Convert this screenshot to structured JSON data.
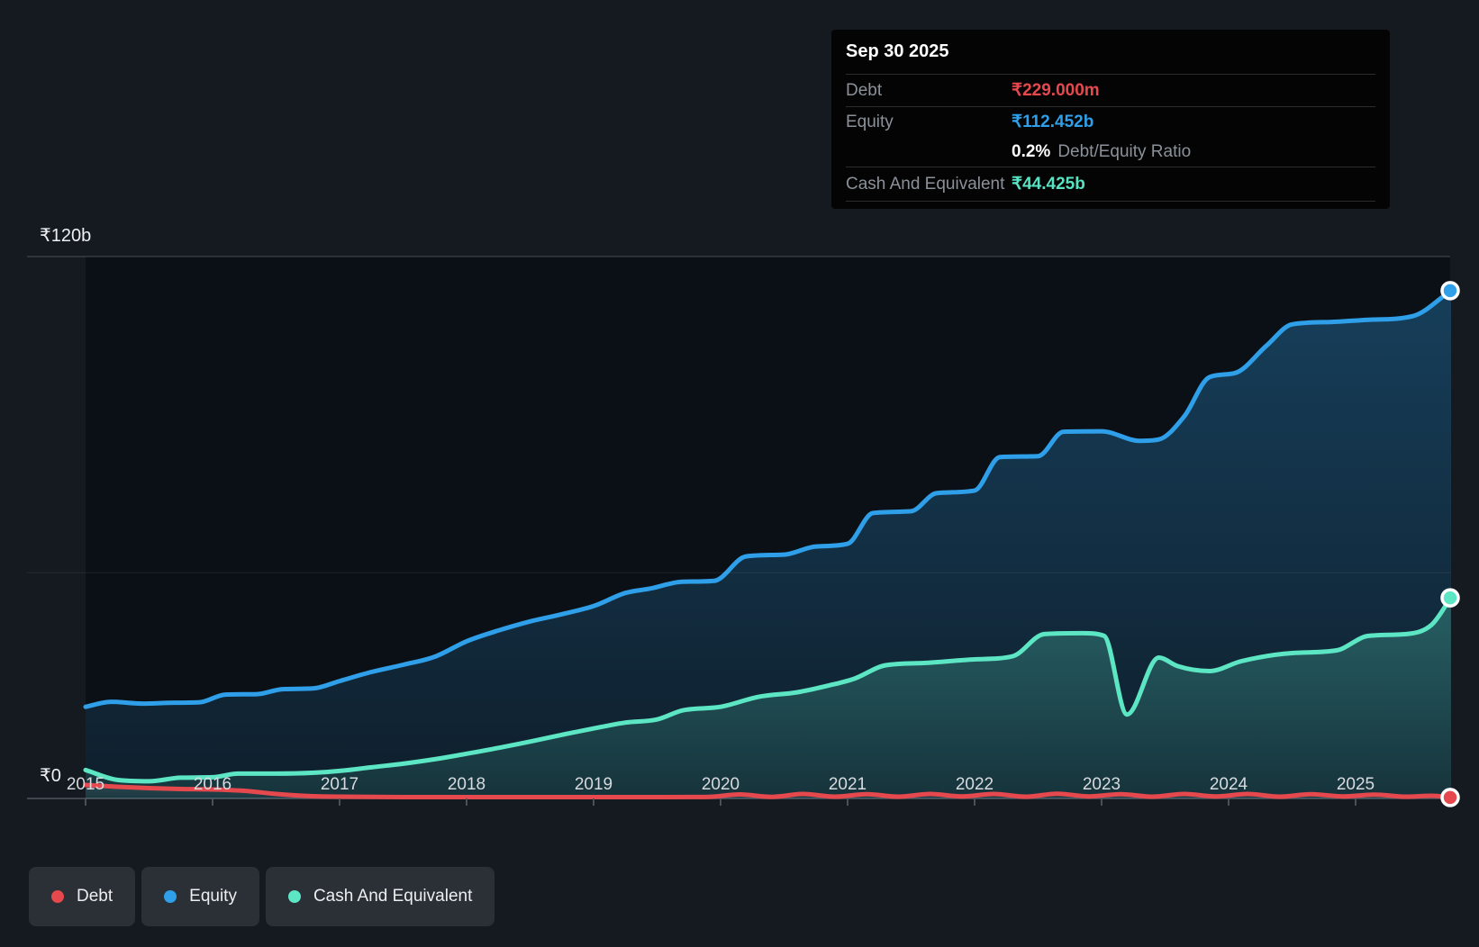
{
  "tooltip": {
    "date": "Sep 30 2025",
    "debt_label": "Debt",
    "debt_value": "₹229.000m",
    "equity_label": "Equity",
    "equity_value": "₹112.452b",
    "ratio_value": "0.2%",
    "ratio_label": "Debt/Equity Ratio",
    "cash_label": "Cash And Equivalent",
    "cash_value": "₹44.425b"
  },
  "legend": {
    "items": [
      {
        "label": "Debt",
        "color": "#e5484d"
      },
      {
        "label": "Equity",
        "color": "#2e9fe8"
      },
      {
        "label": "Cash And Equivalent",
        "color": "#5ce6c4"
      }
    ]
  },
  "chart_data": {
    "type": "area",
    "unit": "₹ billions (INR)",
    "ylim": [
      0,
      120
    ],
    "y_gridlines": [
      0,
      50,
      120
    ],
    "y_tick_labels": [
      "₹0",
      "₹120b"
    ],
    "x_tick_labels": [
      "2015",
      "2016",
      "2017",
      "2018",
      "2019",
      "2020",
      "2021",
      "2022",
      "2023",
      "2024",
      "2025"
    ],
    "x_end": 2025.75,
    "end_markers": true,
    "grid": "horizontal-only",
    "legend_position": "bottom-left",
    "series": [
      {
        "name": "Debt",
        "color": "#e5484d",
        "fill": "gray-gradient",
        "end_value_label": "₹229.000m",
        "points": [
          [
            2015.0,
            3.0
          ],
          [
            2015.25,
            2.6
          ],
          [
            2015.5,
            2.3
          ],
          [
            2015.75,
            2.1
          ],
          [
            2016.0,
            2.0
          ],
          [
            2016.25,
            1.7
          ],
          [
            2016.5,
            1.0
          ],
          [
            2016.75,
            0.55
          ],
          [
            2017.0,
            0.4
          ],
          [
            2017.5,
            0.3
          ],
          [
            2018.0,
            0.3
          ],
          [
            2018.5,
            0.3
          ],
          [
            2019.0,
            0.3
          ],
          [
            2019.5,
            0.3
          ],
          [
            2019.9,
            0.35
          ],
          [
            2020.15,
            0.9
          ],
          [
            2020.4,
            0.35
          ],
          [
            2020.65,
            1.0
          ],
          [
            2020.9,
            0.4
          ],
          [
            2021.15,
            0.95
          ],
          [
            2021.4,
            0.4
          ],
          [
            2021.65,
            1.0
          ],
          [
            2021.9,
            0.45
          ],
          [
            2022.15,
            1.0
          ],
          [
            2022.4,
            0.4
          ],
          [
            2022.65,
            1.05
          ],
          [
            2022.9,
            0.45
          ],
          [
            2023.15,
            0.95
          ],
          [
            2023.4,
            0.4
          ],
          [
            2023.65,
            1.0
          ],
          [
            2023.9,
            0.45
          ],
          [
            2024.15,
            1.0
          ],
          [
            2024.4,
            0.4
          ],
          [
            2024.65,
            0.95
          ],
          [
            2024.9,
            0.45
          ],
          [
            2025.15,
            0.85
          ],
          [
            2025.4,
            0.4
          ],
          [
            2025.6,
            0.6
          ],
          [
            2025.75,
            0.229
          ]
        ]
      },
      {
        "name": "Equity",
        "color": "#2e9fe8",
        "fill": "blue-gradient",
        "end_value_label": "₹112.452b",
        "points": [
          [
            2015.0,
            20.3
          ],
          [
            2015.2,
            21.4
          ],
          [
            2015.45,
            21.0
          ],
          [
            2015.7,
            21.2
          ],
          [
            2015.9,
            21.3
          ],
          [
            2016.1,
            23.0
          ],
          [
            2016.35,
            23.1
          ],
          [
            2016.55,
            24.2
          ],
          [
            2016.8,
            24.4
          ],
          [
            2017.0,
            26.0
          ],
          [
            2017.25,
            28.0
          ],
          [
            2017.5,
            29.6
          ],
          [
            2017.75,
            31.4
          ],
          [
            2018.0,
            34.8
          ],
          [
            2018.25,
            37.2
          ],
          [
            2018.5,
            39.2
          ],
          [
            2018.75,
            40.8
          ],
          [
            2019.0,
            42.6
          ],
          [
            2019.25,
            45.5
          ],
          [
            2019.45,
            46.5
          ],
          [
            2019.7,
            48.0
          ],
          [
            2019.95,
            48.2
          ],
          [
            2020.2,
            53.6
          ],
          [
            2020.5,
            54.0
          ],
          [
            2020.75,
            55.8
          ],
          [
            2021.0,
            56.4
          ],
          [
            2021.2,
            63.2
          ],
          [
            2021.5,
            63.6
          ],
          [
            2021.7,
            67.6
          ],
          [
            2022.0,
            68.2
          ],
          [
            2022.2,
            75.6
          ],
          [
            2022.5,
            75.8
          ],
          [
            2022.7,
            81.2
          ],
          [
            2023.0,
            81.3
          ],
          [
            2023.3,
            79.2
          ],
          [
            2023.45,
            79.5
          ],
          [
            2023.65,
            84.6
          ],
          [
            2023.85,
            93.3
          ],
          [
            2024.05,
            94.2
          ],
          [
            2024.3,
            100.3
          ],
          [
            2024.5,
            105.0
          ],
          [
            2024.8,
            105.5
          ],
          [
            2025.1,
            106.0
          ],
          [
            2025.45,
            106.8
          ],
          [
            2025.75,
            112.452
          ]
        ]
      },
      {
        "name": "Cash And Equivalent",
        "color": "#5ce6c4",
        "fill": "teal-gradient",
        "end_value_label": "₹44.425b",
        "points": [
          [
            2015.0,
            6.3
          ],
          [
            2015.25,
            4.1
          ],
          [
            2015.5,
            3.8
          ],
          [
            2015.75,
            4.6
          ],
          [
            2016.0,
            4.7
          ],
          [
            2016.2,
            5.5
          ],
          [
            2016.5,
            5.5
          ],
          [
            2016.8,
            5.7
          ],
          [
            2017.0,
            6.1
          ],
          [
            2017.25,
            6.9
          ],
          [
            2017.5,
            7.7
          ],
          [
            2017.75,
            8.7
          ],
          [
            2018.0,
            9.9
          ],
          [
            2018.25,
            11.2
          ],
          [
            2018.5,
            12.6
          ],
          [
            2018.75,
            14.1
          ],
          [
            2019.0,
            15.5
          ],
          [
            2019.25,
            16.8
          ],
          [
            2019.5,
            17.5
          ],
          [
            2019.7,
            19.5
          ],
          [
            2020.0,
            20.3
          ],
          [
            2020.3,
            22.5
          ],
          [
            2020.6,
            23.5
          ],
          [
            2020.85,
            25.0
          ],
          [
            2021.05,
            26.5
          ],
          [
            2021.3,
            29.5
          ],
          [
            2021.6,
            30.0
          ],
          [
            2022.0,
            30.8
          ],
          [
            2022.3,
            31.5
          ],
          [
            2022.55,
            36.4
          ],
          [
            2022.85,
            36.6
          ],
          [
            2023.02,
            36.0
          ],
          [
            2023.2,
            18.6
          ],
          [
            2023.45,
            31.2
          ],
          [
            2023.6,
            29.3
          ],
          [
            2023.85,
            28.2
          ],
          [
            2024.1,
            30.4
          ],
          [
            2024.5,
            32.2
          ],
          [
            2024.85,
            32.8
          ],
          [
            2025.1,
            36.0
          ],
          [
            2025.4,
            36.4
          ],
          [
            2025.6,
            38.5
          ],
          [
            2025.75,
            44.425
          ]
        ]
      }
    ]
  }
}
